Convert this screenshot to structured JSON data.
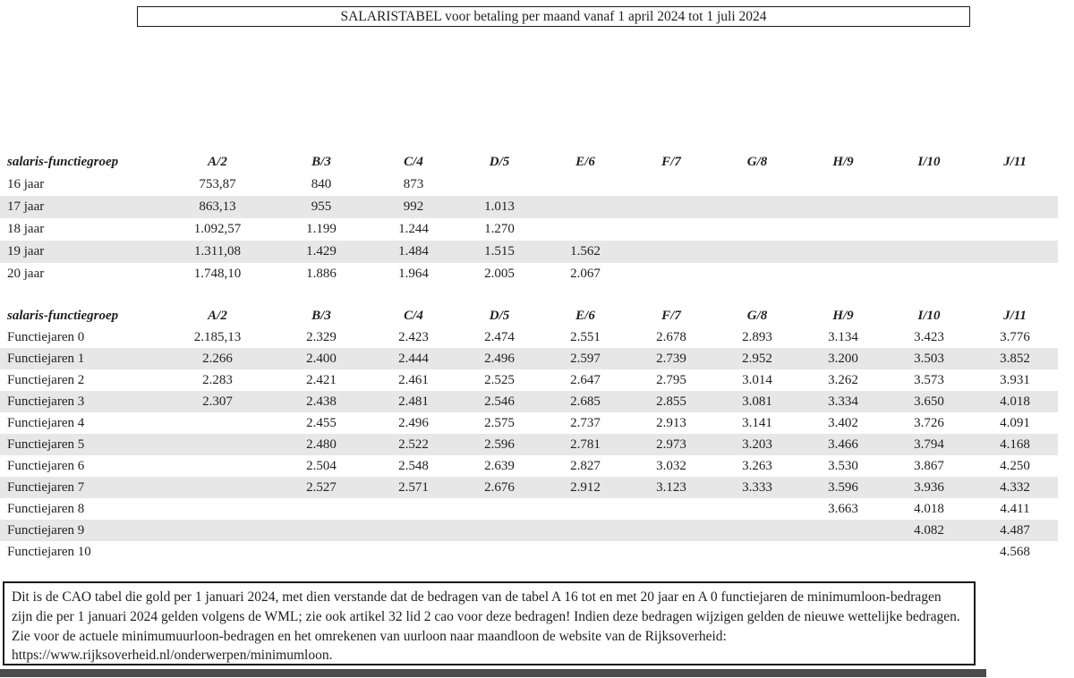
{
  "title_box": {
    "text": "SALARISTABEL voor betaling per maand vanaf 1 april 2024 tot 1 juli 2024"
  },
  "table": {
    "group_header": "salaris-functiegroep",
    "columns": [
      "A/2",
      "B/3",
      "C/4",
      "D/5",
      "E/6",
      "F/7",
      "G/8",
      "H/9",
      "I/10",
      "J/11"
    ],
    "age_section": {
      "rows": [
        {
          "label": "16 jaar",
          "shaded": false,
          "values": [
            "753,87",
            "840",
            "873",
            "",
            "",
            "",
            "",
            "",
            "",
            ""
          ]
        },
        {
          "label": "17 jaar",
          "shaded": true,
          "values": [
            "863,13",
            "955",
            "992",
            "1.013",
            "",
            "",
            "",
            "",
            "",
            ""
          ]
        },
        {
          "label": "18 jaar",
          "shaded": false,
          "values": [
            "1.092,57",
            "1.199",
            "1.244",
            "1.270",
            "",
            "",
            "",
            "",
            "",
            ""
          ]
        },
        {
          "label": "19 jaar",
          "shaded": true,
          "values": [
            "1.311,08",
            "1.429",
            "1.484",
            "1.515",
            "1.562",
            "",
            "",
            "",
            "",
            ""
          ]
        },
        {
          "label": "20 jaar",
          "shaded": false,
          "values": [
            "1.748,10",
            "1.886",
            "1.964",
            "2.005",
            "2.067",
            "",
            "",
            "",
            "",
            ""
          ]
        }
      ]
    },
    "functiejaren_section": {
      "rows": [
        {
          "label": "Functiejaren 0",
          "shaded": false,
          "values": [
            "2.185,13",
            "2.329",
            "2.423",
            "2.474",
            "2.551",
            "2.678",
            "2.893",
            "3.134",
            "3.423",
            "3.776"
          ]
        },
        {
          "label": "Functiejaren 1",
          "shaded": true,
          "values": [
            "2.266",
            "2.400",
            "2.444",
            "2.496",
            "2.597",
            "2.739",
            "2.952",
            "3.200",
            "3.503",
            "3.852"
          ]
        },
        {
          "label": "Functiejaren 2",
          "shaded": false,
          "values": [
            "2.283",
            "2.421",
            "2.461",
            "2.525",
            "2.647",
            "2.795",
            "3.014",
            "3.262",
            "3.573",
            "3.931"
          ]
        },
        {
          "label": "Functiejaren 3",
          "shaded": true,
          "values": [
            "2.307",
            "2.438",
            "2.481",
            "2.546",
            "2.685",
            "2.855",
            "3.081",
            "3.334",
            "3.650",
            "4.018"
          ]
        },
        {
          "label": "Functiejaren 4",
          "shaded": false,
          "values": [
            "",
            "2.455",
            "2.496",
            "2.575",
            "2.737",
            "2.913",
            "3.141",
            "3.402",
            "3.726",
            "4.091"
          ]
        },
        {
          "label": "Functiejaren 5",
          "shaded": true,
          "values": [
            "",
            "2.480",
            "2.522",
            "2.596",
            "2.781",
            "2.973",
            "3.203",
            "3.466",
            "3.794",
            "4.168"
          ]
        },
        {
          "label": "Functiejaren 6",
          "shaded": false,
          "values": [
            "",
            "2.504",
            "2.548",
            "2.639",
            "2.827",
            "3.032",
            "3.263",
            "3.530",
            "3.867",
            "4.250"
          ]
        },
        {
          "label": "Functiejaren 7",
          "shaded": true,
          "values": [
            "",
            "2.527",
            "2.571",
            "2.676",
            "2.912",
            "3.123",
            "3.333",
            "3.596",
            "3.936",
            "4.332"
          ]
        },
        {
          "label": "Functiejaren 8",
          "shaded": false,
          "values": [
            "",
            "",
            "",
            "",
            "",
            "",
            "",
            "3.663",
            "4.018",
            "4.411"
          ]
        },
        {
          "label": "Functiejaren 9",
          "shaded": true,
          "values": [
            "",
            "",
            "",
            "",
            "",
            "",
            "",
            "",
            "4.082",
            "4.487"
          ]
        },
        {
          "label": "Functiejaren 10",
          "shaded": false,
          "values": [
            "",
            "",
            "",
            "",
            "",
            "",
            "",
            "",
            "",
            "4.568"
          ]
        }
      ]
    }
  },
  "footer_note": {
    "text": "Dit is de CAO tabel die gold per 1 januari 2024, met dien verstande dat de bedragen van de tabel A 16 tot en met 20 jaar en A 0 functiejaren de minimumloon-bedragen zijn die per 1 januari 2024 gelden volgens de WML; zie ook artikel 32 lid 2 cao voor deze bedragen! Indien deze bedragen wijzigen gelden de nieuwe wettelijke bedragen. Zie voor de actuele minimumuurloon-bedragen en het omrekenen van uurloon naar maandloon de website van de Rijksoverheid: https://www.rijksoverheid.nl/onderwerpen/minimumloon."
  },
  "colors": {
    "row_shade": "#e7e7e7",
    "text": "#1f1f1f",
    "border": "#1a1a1a",
    "bottom_bar": "#4b4b4b"
  }
}
